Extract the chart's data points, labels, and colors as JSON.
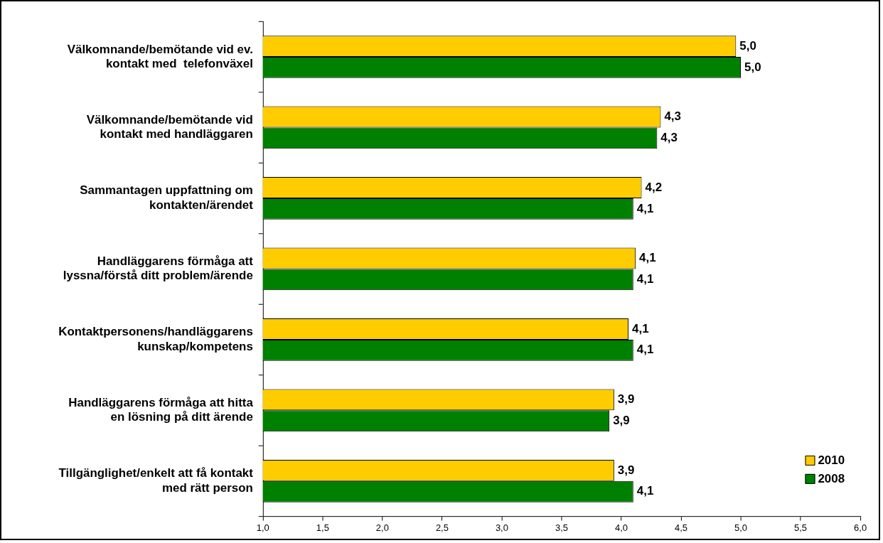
{
  "chart_data": {
    "type": "bar",
    "orientation": "horizontal",
    "categories": [
      "Välkomnande/bemötande vid ev.\nkontakt med  telefonväxel",
      "Välkomnande/bemötande vid\nkontakt med handläggaren",
      "Sammantagen uppfattning om\nkontakten/ärendet",
      "Handläggarens förmåga att\nlyssna/förstå ditt problem/ärende",
      "Kontaktpersonens/handläggarens\nkunskap/kompetens",
      "Handläggarens förmåga att hitta\nen lösning på ditt ärende",
      "Tillgänglighet/enkelt att få kontakt\nmed rätt person"
    ],
    "series": [
      {
        "name": "2010",
        "color": "#ffcc00",
        "values": [
          4.96,
          4.33,
          4.17,
          4.12,
          4.06,
          3.94,
          3.94
        ],
        "value_labels": [
          "5,0",
          "4,3",
          "4,2",
          "4,1",
          "4,1",
          "3,9",
          "3,9"
        ]
      },
      {
        "name": "2008",
        "color": "#008000",
        "values": [
          5.0,
          4.3,
          4.1,
          4.1,
          4.1,
          3.9,
          4.1
        ],
        "value_labels": [
          "5,0",
          "4,3",
          "4,1",
          "4,1",
          "4,1",
          "3,9",
          "4,1"
        ]
      }
    ],
    "xlim": [
      1,
      6
    ],
    "xticks": [
      {
        "value": 1,
        "label": "1,0"
      },
      {
        "value": 1.5,
        "label": "1,5"
      },
      {
        "value": 2,
        "label": "2,0"
      },
      {
        "value": 2.5,
        "label": "2,5"
      },
      {
        "value": 3,
        "label": "3,0"
      },
      {
        "value": 3.5,
        "label": "3,5"
      },
      {
        "value": 4,
        "label": "4,0"
      },
      {
        "value": 4.5,
        "label": "4,5"
      },
      {
        "value": 5,
        "label": "5,0"
      },
      {
        "value": 5.5,
        "label": "5,5"
      },
      {
        "value": 6,
        "label": "6,0"
      }
    ],
    "grid": false,
    "legend": "bottom right"
  }
}
